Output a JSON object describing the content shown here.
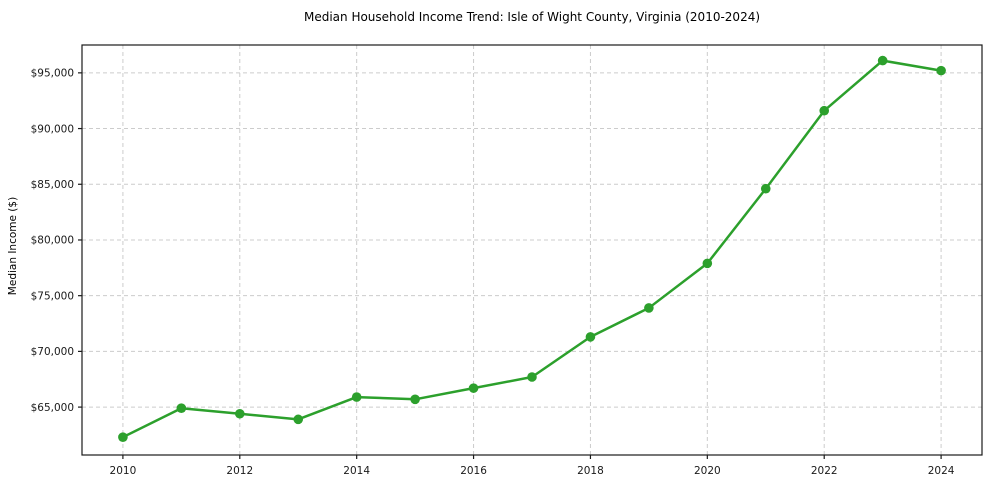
{
  "chart_data": {
    "type": "line",
    "title": "Median Household Income Trend: Isle of Wight County, Virginia (2010-2024)",
    "xlabel": "",
    "ylabel": "Median Income ($)",
    "x": [
      2010,
      2011,
      2012,
      2013,
      2014,
      2015,
      2016,
      2017,
      2018,
      2019,
      2020,
      2021,
      2022,
      2023,
      2024
    ],
    "values": [
      62300,
      64900,
      64400,
      63900,
      65900,
      65700,
      66700,
      67700,
      71300,
      73900,
      77900,
      84600,
      91600,
      96100,
      95200
    ],
    "x_ticks": [
      2010,
      2012,
      2014,
      2016,
      2018,
      2020,
      2022,
      2024
    ],
    "x_tick_labels": [
      "2010",
      "2012",
      "2014",
      "2016",
      "2018",
      "2020",
      "2022",
      "2024"
    ],
    "y_ticks": [
      65000,
      70000,
      75000,
      80000,
      85000,
      90000,
      95000
    ],
    "y_tick_labels": [
      "$65,000",
      "$70,000",
      "$75,000",
      "$80,000",
      "$85,000",
      "$90,000",
      "$95,000"
    ],
    "xlim": [
      2009.3,
      2024.7
    ],
    "ylim": [
      60700,
      97500
    ],
    "grid": true,
    "grid_style": "dashed",
    "legend": "none",
    "line_color": "#2ca02c",
    "marker": "circle",
    "marker_color": "#2ca02c",
    "grid_color": "#cccccc",
    "axis_color": "#1a1a1a",
    "text_color": "#1a1a1a",
    "background_color": "#ffffff"
  }
}
